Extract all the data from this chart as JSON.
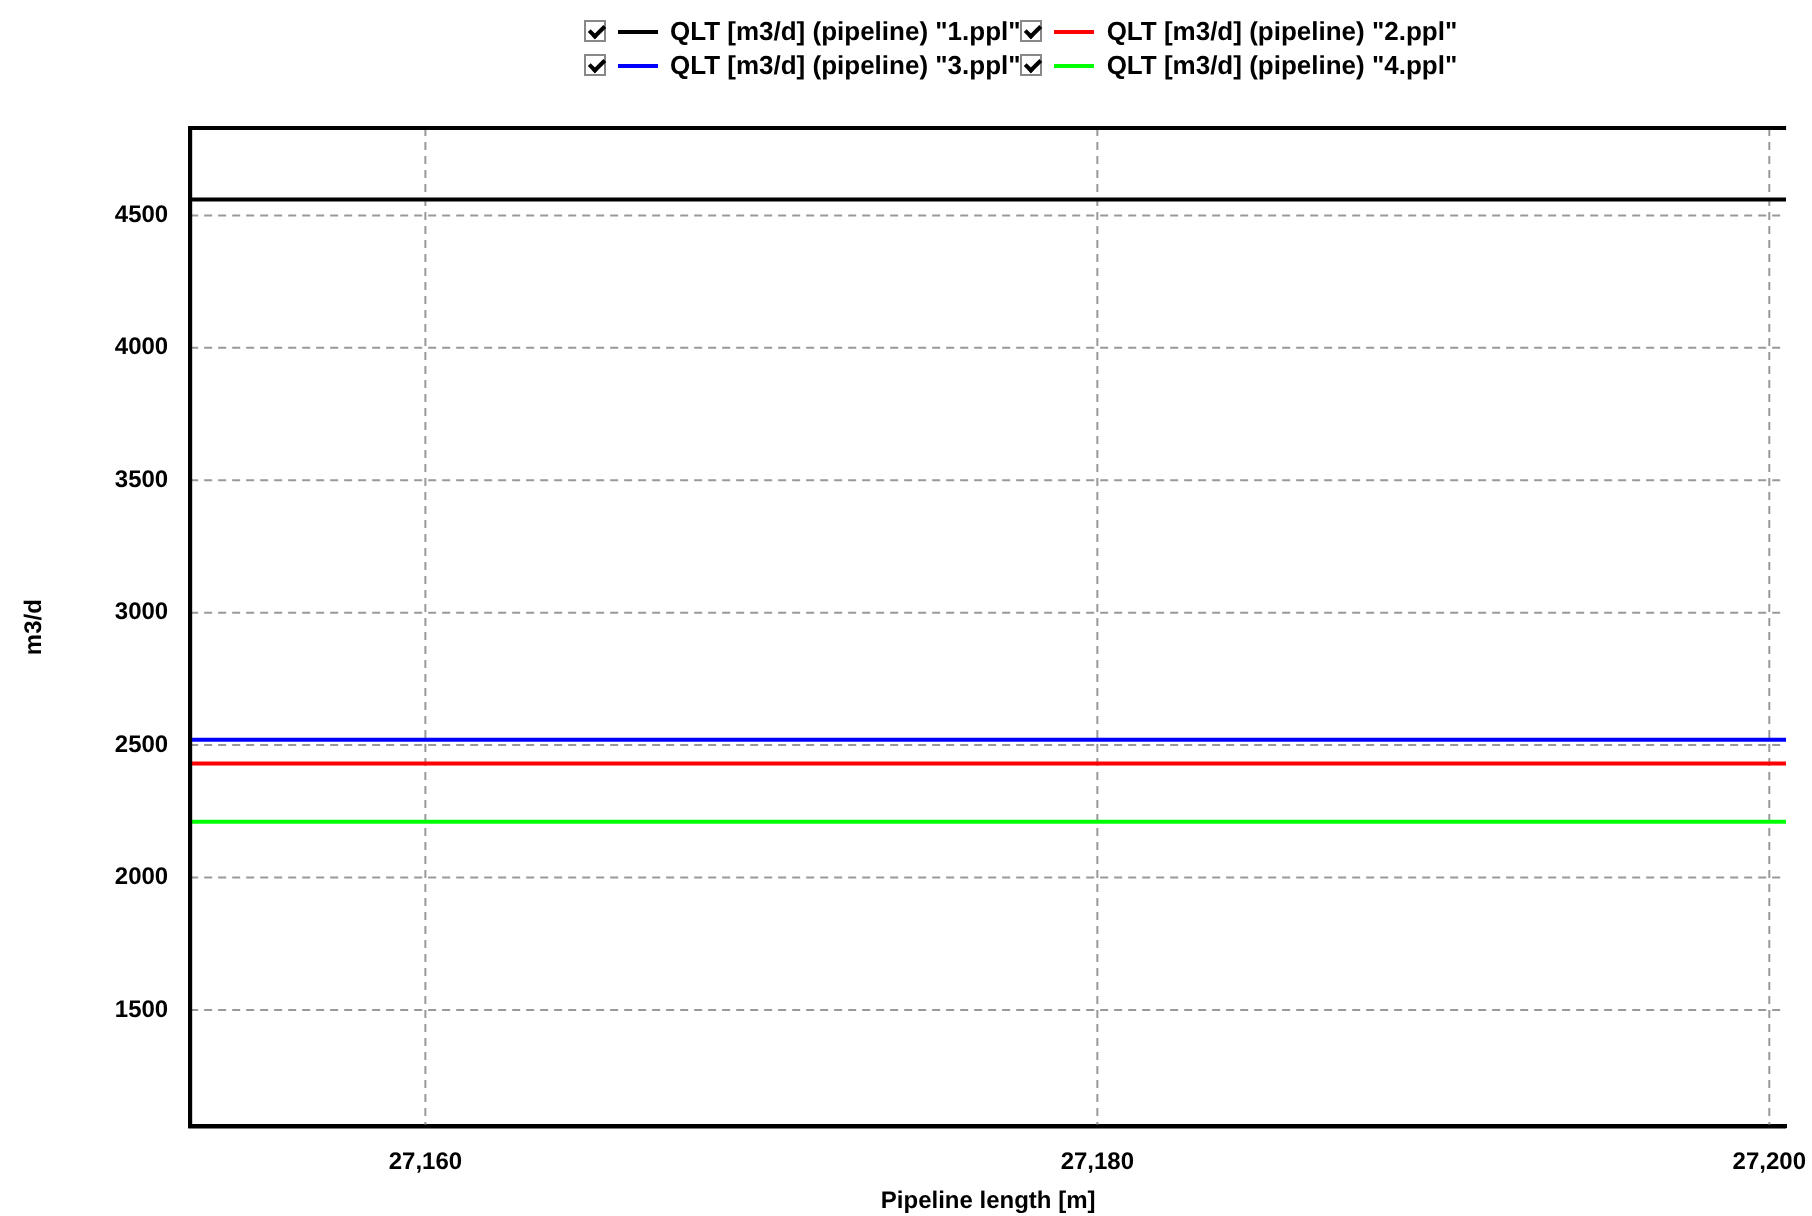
{
  "chart_data": {
    "type": "line",
    "xlabel": "Pipeline length [m]",
    "ylabel": "m3/d",
    "x": [
      27153,
      27200.5
    ],
    "xlim": [
      27153,
      27200.5
    ],
    "xticks": [
      {
        "value": 27160,
        "label": "27,160"
      },
      {
        "value": 27180,
        "label": "27,180"
      },
      {
        "value": 27200,
        "label": "27,200"
      }
    ],
    "ylim": [
      1060,
      4830
    ],
    "yticks": [
      1500,
      2000,
      2500,
      3000,
      3500,
      4000,
      4500
    ],
    "grid": true,
    "legend": "top",
    "marker": "none",
    "line_style": "solid",
    "series": [
      {
        "name": "QLT [m3/d] (pipeline) \"1.ppl\"",
        "color": "#000000",
        "values": [
          4560,
          4560
        ]
      },
      {
        "name": "QLT [m3/d] (pipeline) \"2.ppl\"",
        "color": "#ff0000",
        "values": [
          2430,
          2430
        ]
      },
      {
        "name": "QLT [m3/d] (pipeline) \"3.ppl\"",
        "color": "#0000ff",
        "values": [
          2520,
          2520
        ]
      },
      {
        "name": "QLT [m3/d] (pipeline) \"4.ppl\"",
        "color": "#00ff00",
        "values": [
          2210,
          2210
        ]
      }
    ]
  }
}
